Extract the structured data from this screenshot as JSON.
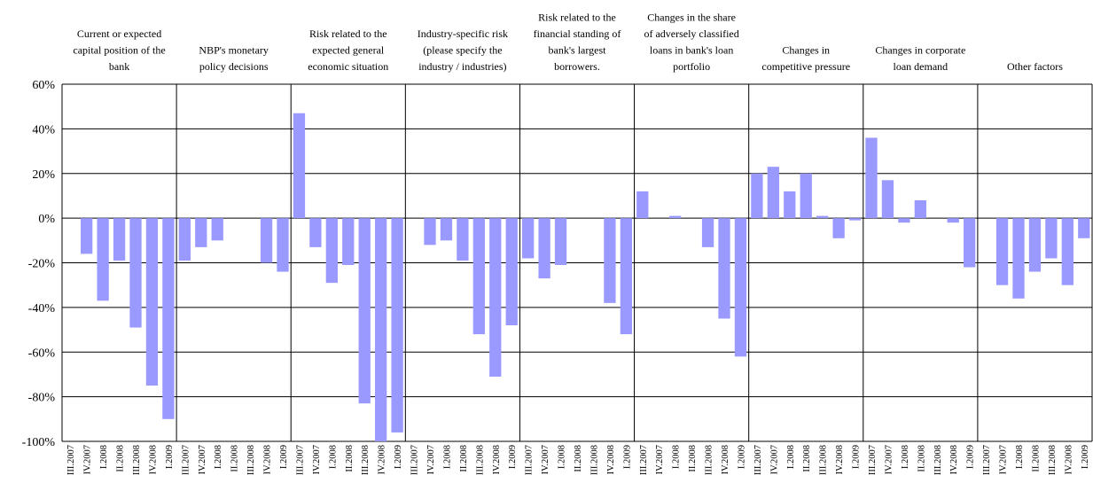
{
  "chart_data": {
    "type": "bar",
    "color": "#9999ff",
    "ylim": [
      -100,
      60
    ],
    "yticks": [
      {
        "value": -100,
        "label": "-100%"
      },
      {
        "value": -80,
        "label": "-80%"
      },
      {
        "value": -60,
        "label": "-60%"
      },
      {
        "value": -40,
        "label": "-40%"
      },
      {
        "value": -20,
        "label": "-20%"
      },
      {
        "value": 0,
        "label": "0%"
      },
      {
        "value": 20,
        "label": "20%"
      },
      {
        "value": 40,
        "label": "40%"
      },
      {
        "value": 60,
        "label": "60%"
      }
    ],
    "grid": true,
    "panels": [
      {
        "title": [
          "Current or expected",
          "capital position of the",
          "bank"
        ],
        "categories": [
          "III.2007",
          "IV.2007",
          "I.2008",
          "II.2008",
          "III.2008",
          "IV.2008",
          "I.2009"
        ],
        "values": [
          null,
          -16,
          -37,
          -19,
          -49,
          -75,
          -90
        ]
      },
      {
        "title": [
          "NBP's monetary",
          "policy decisions"
        ],
        "categories": [
          "III.2007",
          "IV.2007",
          "I.2008",
          "II.2008",
          "III.2008",
          "IV.2008",
          "I.2009"
        ],
        "values": [
          -19,
          -13,
          -10,
          null,
          null,
          -20,
          -24
        ]
      },
      {
        "title": [
          "Risk related to the",
          "expected general",
          "economic situation"
        ],
        "categories": [
          "III.2007",
          "IV.2007",
          "I.2008",
          "II.2008",
          "III.2008",
          "IV.2008",
          "I.2009"
        ],
        "values": [
          47,
          -13,
          -29,
          -21,
          -83,
          -100,
          -96
        ]
      },
      {
        "title": [
          "Industry-specific risk",
          "(please specify the",
          "industry / industries)"
        ],
        "categories": [
          "III.2007",
          "IV.2007",
          "I.2008",
          "II.2008",
          "III.2008",
          "IV.2008",
          "I.2009"
        ],
        "values": [
          null,
          -12,
          -10,
          -19,
          -52,
          -71,
          -48
        ]
      },
      {
        "title": [
          "Risk related to the",
          "financial standing of",
          "bank's largest",
          "borrowers."
        ],
        "categories": [
          "III.2007",
          "IV.2007",
          "I.2008",
          "II.2008",
          "III.2008",
          "IV.2008",
          "I.2009"
        ],
        "values": [
          -18,
          -27,
          -21,
          null,
          null,
          -38,
          -52
        ]
      },
      {
        "title": [
          "Changes in the share",
          "of adversely classified",
          "loans in bank's loan",
          "portfolio"
        ],
        "categories": [
          "III.2007",
          "IV.2007",
          "I.2008",
          "II.2008",
          "III.2008",
          "IV.2008",
          "I.2009"
        ],
        "values": [
          12,
          null,
          1,
          null,
          -13,
          -45,
          -62
        ]
      },
      {
        "title": [
          "Changes in",
          "competitive pressure"
        ],
        "categories": [
          "III.2007",
          "IV.2007",
          "I.2008",
          "II.2008",
          "III.2008",
          "IV.2008",
          "I.2009"
        ],
        "values": [
          20,
          23,
          12,
          20,
          1,
          -9,
          -1
        ]
      },
      {
        "title": [
          "Changes in corporate",
          "loan demand"
        ],
        "categories": [
          "III.2007",
          "IV.2007",
          "I.2008",
          "II.2008",
          "III.2008",
          "IV.2008",
          "I.2009"
        ],
        "values": [
          36,
          17,
          -2,
          8,
          null,
          -2,
          -22
        ]
      },
      {
        "title": [
          "Other factors"
        ],
        "categories": [
          "III.2007",
          "IV.2007",
          "I.2008",
          "II.2008",
          "III.2008",
          "IV.2008",
          "I.2009"
        ],
        "values": [
          null,
          -30,
          -36,
          -24,
          -18,
          -30,
          -9
        ]
      }
    ]
  }
}
